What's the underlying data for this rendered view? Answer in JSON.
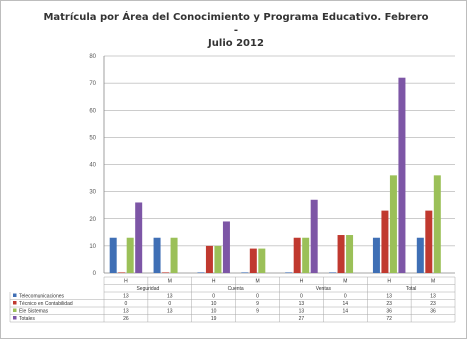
{
  "chart_data": {
    "type": "bar",
    "title_lines": [
      "Matrícula por Área del Conocimiento y Programa Educativo. Febrero -",
      "Julio 2012"
    ],
    "groups": [
      {
        "label": "Seguridad",
        "sub": [
          "H",
          "M"
        ]
      },
      {
        "label": "Cuenta",
        "sub": [
          "H",
          "M"
        ]
      },
      {
        "label": "Ventas",
        "sub": [
          "H",
          "M"
        ]
      },
      {
        "label": "Total",
        "sub": [
          "H",
          "M"
        ]
      }
    ],
    "categories": [
      "H",
      "M",
      "H",
      "M",
      "H",
      "M",
      "H",
      "M"
    ],
    "series": [
      {
        "name": "Telecomunicaciones",
        "color": "#3f6fb5",
        "values": [
          13,
          13,
          0,
          0,
          0,
          0,
          13,
          13
        ]
      },
      {
        "name": "Técnico en Contabilidad",
        "color": "#c0392f",
        "values": [
          0,
          0,
          10,
          9,
          13,
          14,
          23,
          23
        ]
      },
      {
        "name": "Ele Sistemas",
        "color": "#9bc058",
        "values": [
          13,
          13,
          10,
          9,
          13,
          14,
          36,
          36
        ]
      },
      {
        "name": "Totales",
        "color": "#7d56a6",
        "values": [
          26,
          null,
          19,
          null,
          27,
          null,
          72,
          null
        ]
      }
    ],
    "table_rows": [
      {
        "name": "Telecomunicaciones",
        "values": [
          "13",
          "13",
          "0",
          "0",
          "0",
          "0",
          "13",
          "13"
        ]
      },
      {
        "name": "Técnico en Contabilidad",
        "values": [
          "0",
          "0",
          "10",
          "9",
          "13",
          "14",
          "23",
          "23"
        ]
      },
      {
        "name": "Ele Sistemas",
        "values": [
          "13",
          "13",
          "10",
          "9",
          "13",
          "14",
          "36",
          "36"
        ]
      },
      {
        "name": "Totales",
        "values": [
          "26",
          "",
          "19",
          "",
          "27",
          "",
          "72",
          ""
        ]
      }
    ],
    "yticks": [
      "0",
      "10",
      "20",
      "30",
      "40",
      "50",
      "60",
      "70",
      "80"
    ],
    "ylim": [
      0,
      80
    ],
    "grid": true
  }
}
